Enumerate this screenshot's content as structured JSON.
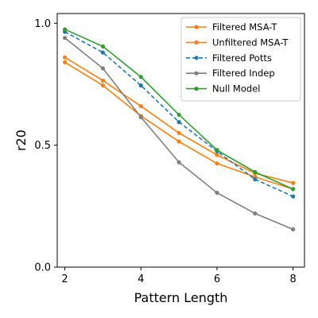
{
  "chart_data": {
    "type": "line",
    "title": "",
    "xlabel": "Pattern Length",
    "ylabel": "r20",
    "xlim": [
      1.8,
      8.3
    ],
    "ylim": [
      0.0,
      1.04
    ],
    "x_ticks": [
      2,
      4,
      6,
      8
    ],
    "y_ticks": [
      0.0,
      0.5,
      1.0
    ],
    "x_tick_labels": [
      "2",
      "4",
      "6",
      "8"
    ],
    "y_tick_labels": [
      "0.0",
      "0.5",
      "1.0"
    ],
    "grid": false,
    "legend_position": "top-right",
    "x": [
      2,
      3,
      4,
      5,
      6,
      7,
      8
    ],
    "series": [
      {
        "name": "Filtered MSA-T",
        "color": "#ff7f0e",
        "dash": "solid",
        "values": [
          0.86,
          0.765,
          0.66,
          0.55,
          0.46,
          0.385,
          0.345
        ]
      },
      {
        "name": "Unfiltered MSA-T",
        "color": "#ff7f0e",
        "dash": "solid",
        "values": [
          0.84,
          0.745,
          0.62,
          0.515,
          0.425,
          0.37,
          0.32
        ]
      },
      {
        "name": "Filtered Potts",
        "color": "#1f77b4",
        "dash": "dashed",
        "values": [
          0.965,
          0.88,
          0.745,
          0.595,
          0.475,
          0.36,
          0.29
        ]
      },
      {
        "name": "Filtered Indep",
        "color": "#7f7f7f",
        "dash": "solid",
        "values": [
          0.94,
          0.815,
          0.615,
          0.43,
          0.305,
          0.22,
          0.155
        ]
      },
      {
        "name": "Null Model",
        "color": "#2ca02c",
        "dash": "solid",
        "values": [
          0.975,
          0.905,
          0.78,
          0.625,
          0.48,
          0.39,
          0.32
        ]
      }
    ]
  }
}
